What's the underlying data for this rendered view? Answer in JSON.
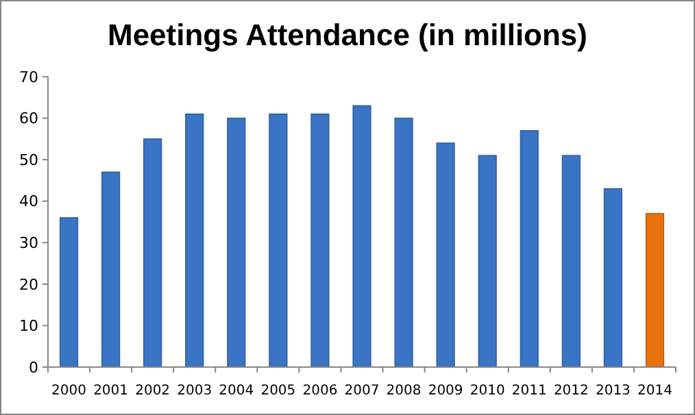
{
  "chart_data": {
    "type": "bar",
    "title": "Meetings Attendance (in millions)",
    "categories": [
      "2000",
      "2001",
      "2002",
      "2003",
      "2004",
      "2005",
      "2006",
      "2007",
      "2008",
      "2009",
      "2010",
      "2011",
      "2012",
      "2013",
      "2014"
    ],
    "values": [
      36,
      47,
      55,
      61,
      60,
      61,
      61,
      63,
      60,
      54,
      51,
      57,
      51,
      43,
      37
    ],
    "colors": [
      "#3a74c4",
      "#3a74c4",
      "#3a74c4",
      "#3a74c4",
      "#3a74c4",
      "#3a74c4",
      "#3a74c4",
      "#3a74c4",
      "#3a74c4",
      "#3a74c4",
      "#3a74c4",
      "#3a74c4",
      "#3a74c4",
      "#3a74c4",
      "#e8720c"
    ],
    "ylim": [
      0,
      70
    ],
    "yticks": [
      0,
      10,
      20,
      30,
      40,
      50,
      60,
      70
    ],
    "grid": false
  }
}
